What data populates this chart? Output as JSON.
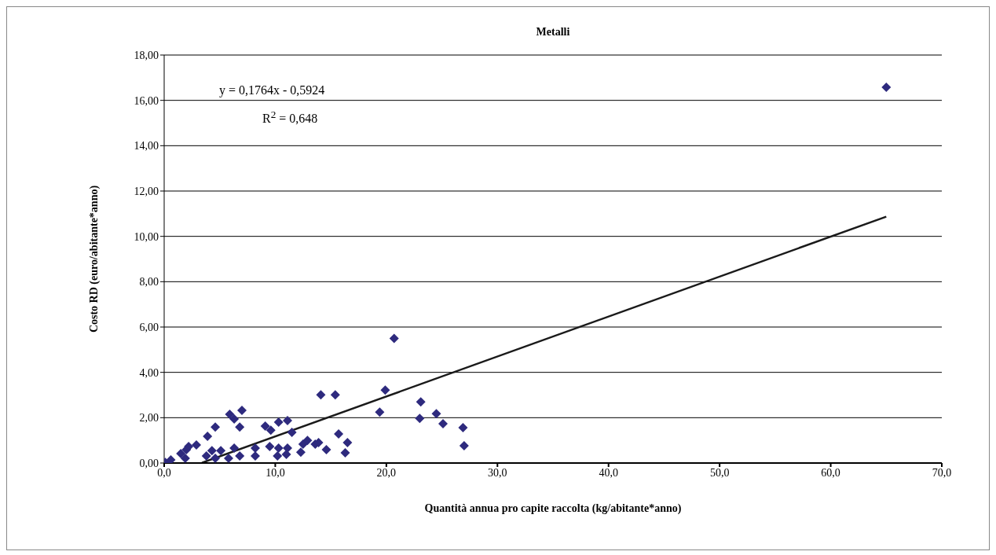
{
  "chart_data": {
    "type": "scatter",
    "title": "Metalli",
    "xlabel": "Quantità annua pro capite raccolta (kg/abitante*anno)",
    "ylabel": "Costo RD (euro/abitante*anno)",
    "annotations": [
      "y = 0,1764x - 0,5924",
      "R$^{2}$ = 0,648"
    ],
    "xlim": [
      0,
      70
    ],
    "ylim": [
      0,
      18
    ],
    "xticks": [
      {
        "value": 0,
        "label": "0,0"
      },
      {
        "value": 10,
        "label": "10,0"
      },
      {
        "value": 20,
        "label": "20,0"
      },
      {
        "value": 30,
        "label": "30,0"
      },
      {
        "value": 40,
        "label": "40,0"
      },
      {
        "value": 50,
        "label": "50,0"
      },
      {
        "value": 60,
        "label": "60,0"
      },
      {
        "value": 70,
        "label": "70,0"
      }
    ],
    "yticks": [
      {
        "value": 0,
        "label": "0,00"
      },
      {
        "value": 2,
        "label": "2,00"
      },
      {
        "value": 4,
        "label": "4,00"
      },
      {
        "value": 6,
        "label": "6,00"
      },
      {
        "value": 8,
        "label": "8,00"
      },
      {
        "value": 10,
        "label": "10,00"
      },
      {
        "value": 12,
        "label": "12,00"
      },
      {
        "value": 14,
        "label": "14,00"
      },
      {
        "value": 16,
        "label": "16,00"
      },
      {
        "value": 18,
        "label": "18,00"
      }
    ],
    "grid": "y",
    "legend": false,
    "marker": "diamond",
    "series": [
      {
        "color": "#2e2a7e",
        "x": [
          0.1,
          0.6,
          1.5,
          2.0,
          2.2,
          1.9,
          2.9,
          3.9,
          4.6,
          5.9,
          7.0,
          6.3,
          6.8,
          4.3,
          3.8,
          5.1,
          4.6,
          6.3,
          6.8,
          5.8,
          8.2,
          8.2,
          9.1,
          9.6,
          10.3,
          11.1,
          11.5,
          9.5,
          10.3,
          10.2,
          11.0,
          11.1,
          12.3,
          12.5,
          12.9,
          13.6,
          14.1,
          14.6,
          15.4,
          15.7,
          16.5,
          13.9,
          16.3,
          19.4,
          19.9,
          20.7,
          23.1,
          23.0,
          24.5,
          25.1,
          26.9,
          27.0,
          65.0
        ],
        "values": [
          0.03,
          0.14,
          0.42,
          0.59,
          0.73,
          0.21,
          0.8,
          1.18,
          1.59,
          2.15,
          2.32,
          1.94,
          1.59,
          0.55,
          0.31,
          0.55,
          0.21,
          0.66,
          0.31,
          0.21,
          0.66,
          0.31,
          1.63,
          1.45,
          1.8,
          1.87,
          1.35,
          0.73,
          0.66,
          0.31,
          0.38,
          0.66,
          0.48,
          0.83,
          1.0,
          0.83,
          3.01,
          0.59,
          3.01,
          1.28,
          0.9,
          0.9,
          0.45,
          2.25,
          3.22,
          5.5,
          2.7,
          1.97,
          2.18,
          1.73,
          1.56,
          0.76,
          16.58
        ]
      },
      {
        "type": "line",
        "color": "#1a1a1a",
        "x": [
          3.4,
          65.0
        ],
        "values": [
          0.01,
          10.87
        ],
        "marker": "none",
        "line_style": "solid"
      }
    ]
  }
}
